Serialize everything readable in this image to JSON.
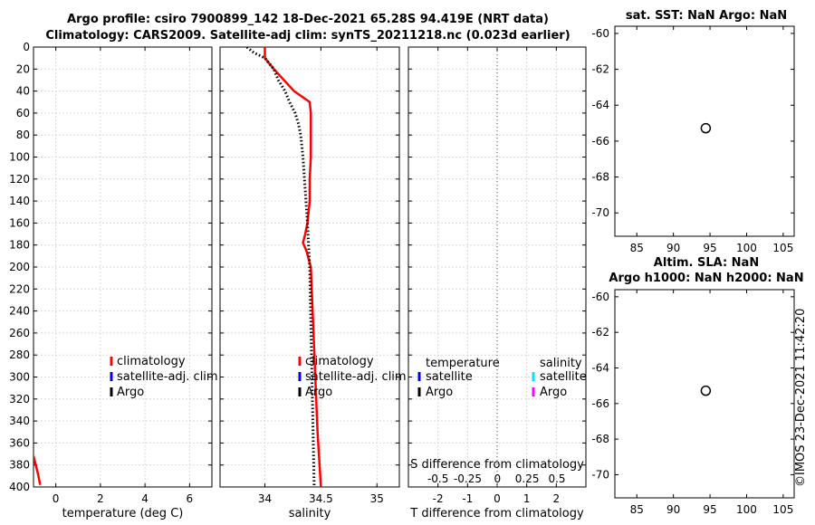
{
  "header": {
    "title_line1": "Argo profile: csiro 7900899_142 18-Dec-2021 65.28S 94.419E (NRT data)",
    "title_line2": "Climatology: CARS2009. Satellite-adj clim: synTS_20211218.nc (0.023d earlier)"
  },
  "map_top_title": "sat. SST: NaN Argo: NaN",
  "map_bottom_title_line1": "Altim. SLA: NaN",
  "map_bottom_title_line2": "Argo h1000: NaN h2000: NaN",
  "credit": "©IMOS 23-Dec-2021 11:42:20",
  "colors": {
    "climatology": "#ff0000",
    "satellite": "#0000ff",
    "argo": "#000000",
    "sal_satellite": "#00e5ff",
    "sal_argo": "#ff00ff"
  },
  "chart_data": [
    {
      "type": "line",
      "name": "temperature",
      "xlabel": "temperature (deg C)",
      "xlim": [
        -1,
        7
      ],
      "xticks": [
        0,
        2,
        4,
        6
      ],
      "ylim": [
        0,
        400
      ],
      "yticks": [
        0,
        20,
        40,
        60,
        80,
        100,
        120,
        140,
        160,
        180,
        200,
        220,
        240,
        260,
        280,
        300,
        320,
        340,
        360,
        380,
        400
      ],
      "series": [
        {
          "name": "climatology",
          "points": [
            [
              -1.0,
              372
            ],
            [
              -0.8,
              388
            ],
            [
              -0.7,
              398
            ]
          ]
        }
      ],
      "legend": [
        "climatology",
        "satellite-adj. clim",
        "Argo"
      ]
    },
    {
      "type": "line",
      "name": "salinity",
      "xlabel": "salinity",
      "xlim": [
        33.6,
        35.2
      ],
      "xticks": [
        34,
        34.5,
        35
      ],
      "ylim": [
        0,
        400
      ],
      "series": [
        {
          "name": "climatology",
          "points": [
            [
              34.0,
              0
            ],
            [
              34.0,
              10
            ],
            [
              34.08,
              20
            ],
            [
              34.17,
              30
            ],
            [
              34.26,
              40
            ],
            [
              34.4,
              50
            ],
            [
              34.41,
              60
            ],
            [
              34.41,
              80
            ],
            [
              34.41,
              100
            ],
            [
              34.4,
              120
            ],
            [
              34.4,
              140
            ],
            [
              34.38,
              160
            ],
            [
              34.36,
              170
            ],
            [
              34.34,
              178
            ],
            [
              34.37,
              185
            ],
            [
              34.41,
              200
            ],
            [
              34.43,
              250
            ],
            [
              34.45,
              300
            ],
            [
              34.47,
              350
            ],
            [
              34.5,
              400
            ]
          ]
        },
        {
          "name": "Argo",
          "points": [
            [
              33.84,
              0
            ],
            [
              33.9,
              5
            ],
            [
              34.0,
              10
            ],
            [
              34.08,
              20
            ],
            [
              34.12,
              30
            ],
            [
              34.18,
              40
            ],
            [
              34.22,
              50
            ],
            [
              34.27,
              60
            ],
            [
              34.3,
              70
            ],
            [
              34.32,
              80
            ],
            [
              34.34,
              100
            ],
            [
              34.36,
              130
            ],
            [
              34.38,
              160
            ],
            [
              34.4,
              200
            ],
            [
              34.41,
              250
            ],
            [
              34.42,
              300
            ],
            [
              34.43,
              350
            ],
            [
              34.44,
              400
            ]
          ]
        }
      ],
      "legend": [
        "climatology",
        "satellite-adj. clim",
        "Argo"
      ]
    },
    {
      "type": "line",
      "name": "difference from climatology",
      "xlabel": "T difference from climatology",
      "xlabel_top": "S difference from climatology",
      "xlim": [
        -3,
        3
      ],
      "xticks": [
        -2,
        -1,
        0,
        1,
        2
      ],
      "s_xticks": [
        "-0.5",
        "-0.25",
        "0",
        "0.25",
        "0.5"
      ],
      "ylim": [
        0,
        400
      ],
      "series": [],
      "legend_temperature_title": "temperature",
      "legend_salinity_title": "salinity",
      "legend_items": [
        "satellite",
        "Argo"
      ]
    },
    {
      "type": "scatter",
      "name": "location map (top)",
      "xlim": [
        82,
        106.5
      ],
      "xticks": [
        85,
        90,
        95,
        100,
        105
      ],
      "ylim": [
        -71.3,
        -59.6
      ],
      "yticks": [
        -60,
        -62,
        -64,
        -66,
        -68,
        -70
      ],
      "points": [
        [
          94.42,
          -65.28
        ]
      ]
    },
    {
      "type": "scatter",
      "name": "location map (bottom)",
      "xlim": [
        82,
        106.5
      ],
      "xticks": [
        85,
        90,
        95,
        100,
        105
      ],
      "ylim": [
        -71.3,
        -59.6
      ],
      "yticks": [
        -60,
        -62,
        -64,
        -66,
        -68,
        -70
      ],
      "points": [
        [
          94.42,
          -65.28
        ]
      ]
    }
  ]
}
